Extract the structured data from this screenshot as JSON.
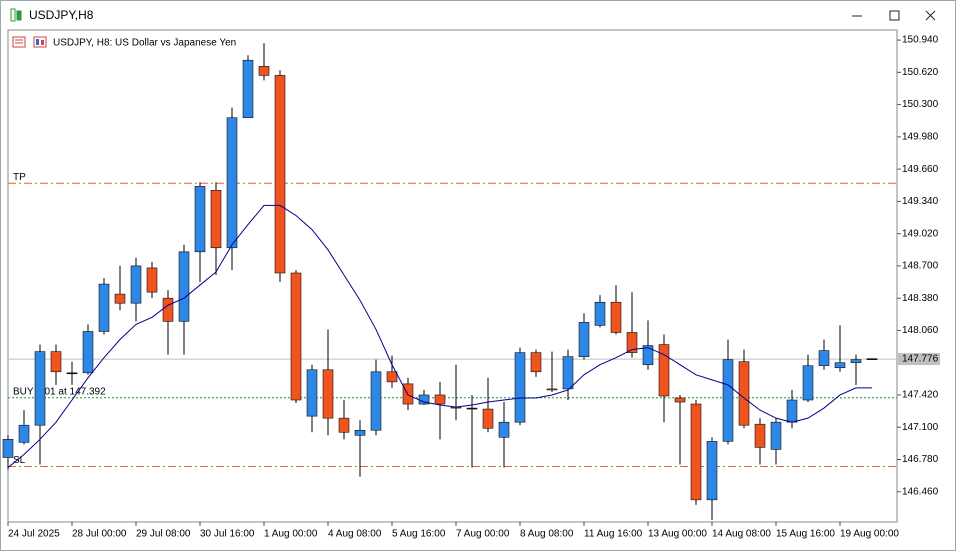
{
  "window_title": "USDJPY,H8",
  "chart_data": {
    "type": "candlestick",
    "title": "USDJPY, H8:  US Dollar vs Japanese Yen",
    "categories": [
      "24 Jul 2025",
      null,
      null,
      null,
      "28 Jul 00:00",
      null,
      null,
      null,
      "29 Jul 08:00",
      null,
      null,
      null,
      "30 Jul 16:00",
      null,
      null,
      null,
      "1 Aug 00:00",
      null,
      null,
      null,
      "4 Aug 08:00",
      null,
      null,
      null,
      "5 Aug 16:00",
      null,
      null,
      null,
      "7 Aug 00:00",
      null,
      null,
      null,
      "8 Aug 08:00",
      null,
      null,
      null,
      "11 Aug 16:00",
      null,
      null,
      null,
      "13 Aug 00:00",
      null,
      null,
      null,
      "14 Aug 08:00",
      null,
      null,
      null,
      "15 Aug 16:00",
      null,
      null,
      null,
      "19 Aug 00:00",
      null,
      null
    ],
    "open": [
      146.8,
      146.95,
      147.12,
      147.85,
      147.64,
      147.64,
      148.05,
      148.42,
      148.33,
      148.68,
      148.38,
      148.15,
      148.84,
      149.45,
      148.88,
      150.17,
      150.68,
      150.59,
      148.63,
      147.21,
      147.67,
      147.19,
      147.02,
      147.07,
      147.65,
      147.53,
      147.33,
      147.42,
      147.3,
      147.29,
      147.28,
      147.0,
      147.15,
      147.84,
      147.48,
      147.48,
      147.8,
      148.11,
      148.34,
      148.04,
      147.72,
      147.92,
      147.39,
      147.33,
      146.38,
      146.96,
      147.75,
      147.13,
      146.88,
      147.15,
      147.37,
      147.71,
      147.69,
      147.74,
      147.78
    ],
    "high": [
      147.02,
      147.27,
      147.92,
      147.92,
      147.75,
      148.12,
      148.58,
      148.7,
      148.78,
      148.74,
      148.46,
      148.91,
      149.53,
      149.53,
      150.27,
      150.79,
      150.91,
      150.64,
      148.66,
      147.72,
      148.07,
      147.37,
      147.17,
      147.77,
      147.81,
      147.59,
      147.47,
      147.55,
      147.72,
      147.42,
      147.59,
      147.35,
      147.89,
      147.87,
      147.85,
      147.87,
      148.23,
      148.41,
      148.51,
      148.44,
      148.16,
      148.02,
      147.42,
      147.37,
      147.0,
      147.97,
      147.87,
      147.19,
      147.19,
      147.47,
      147.82,
      147.97,
      148.11,
      147.82,
      147.78
    ],
    "low": [
      146.68,
      146.93,
      146.73,
      147.52,
      147.52,
      147.62,
      148.02,
      148.26,
      148.15,
      148.38,
      147.82,
      147.82,
      148.54,
      148.61,
      148.66,
      150.17,
      150.54,
      148.54,
      147.34,
      147.05,
      147.02,
      146.98,
      146.61,
      147.02,
      147.49,
      147.27,
      147.32,
      146.98,
      147.17,
      146.7,
      147.05,
      146.7,
      147.12,
      147.6,
      147.45,
      147.37,
      147.77,
      148.09,
      148.02,
      147.79,
      147.67,
      147.15,
      146.73,
      146.33,
      146.18,
      146.93,
      147.09,
      146.73,
      146.73,
      147.09,
      147.35,
      147.67,
      147.65,
      147.52,
      147.78
    ],
    "close": [
      146.98,
      147.12,
      147.85,
      147.65,
      147.64,
      148.05,
      148.52,
      148.33,
      148.7,
      148.44,
      148.15,
      148.84,
      149.49,
      148.88,
      150.17,
      150.74,
      150.59,
      148.63,
      147.37,
      147.67,
      147.19,
      147.05,
      147.07,
      147.65,
      147.55,
      147.33,
      147.42,
      147.33,
      147.29,
      147.29,
      147.09,
      147.15,
      147.84,
      147.65,
      147.47,
      147.8,
      148.14,
      148.34,
      148.04,
      147.84,
      147.91,
      147.41,
      147.35,
      146.38,
      146.96,
      147.77,
      147.12,
      146.9,
      147.15,
      147.37,
      147.71,
      147.86,
      147.74,
      147.77,
      147.78
    ],
    "ma_values": [
      146.7,
      146.83,
      146.98,
      147.15,
      147.37,
      147.59,
      147.79,
      147.97,
      148.12,
      148.19,
      148.31,
      148.38,
      148.51,
      148.64,
      148.91,
      149.11,
      149.3,
      149.3,
      149.2,
      149.06,
      148.86,
      148.61,
      148.36,
      148.07,
      147.72,
      147.42,
      147.35,
      147.32,
      147.3,
      147.32,
      147.35,
      147.37,
      147.39,
      147.39,
      147.42,
      147.47,
      147.62,
      147.72,
      147.79,
      147.87,
      147.89,
      147.82,
      147.72,
      147.62,
      147.57,
      147.52,
      147.39,
      147.27,
      147.19,
      147.15,
      147.19,
      147.29,
      147.42,
      147.49,
      147.49
    ],
    "ma_color": "#00008b",
    "up_color": "#2e86e6",
    "down_color": "#f0531e",
    "levels": [
      {
        "label": "TP",
        "value": 149.52,
        "color": "#e8642c",
        "style": "dashdot"
      },
      {
        "label": "SL",
        "value": 146.71,
        "color": "#e8642c",
        "style": "dashdot"
      },
      {
        "label": "BUY 0.01 at 147.392",
        "value": 147.392,
        "color": "#2e8b2e",
        "style": "dotted"
      }
    ],
    "last_price": {
      "value": 147.776,
      "label": "147.776"
    },
    "ylim": [
      146.16,
      151.04
    ],
    "yticks": [
      {
        "value": 150.94,
        "label": "150.940"
      },
      {
        "value": 150.62,
        "label": "150.620"
      },
      {
        "value": 150.3,
        "label": "150.300"
      },
      {
        "value": 149.98,
        "label": "149.980"
      },
      {
        "value": 149.66,
        "label": "149.660"
      },
      {
        "value": 149.34,
        "label": "149.340"
      },
      {
        "value": 149.02,
        "label": "149.020"
      },
      {
        "value": 148.7,
        "label": "148.700"
      },
      {
        "value": 148.38,
        "label": "148.380"
      },
      {
        "value": 148.06,
        "label": "148.060"
      },
      {
        "value": 147.42,
        "label": "147.420"
      },
      {
        "value": 147.1,
        "label": "147.100"
      },
      {
        "value": 146.78,
        "label": "146.780"
      },
      {
        "value": 146.46,
        "label": "146.460"
      }
    ]
  }
}
